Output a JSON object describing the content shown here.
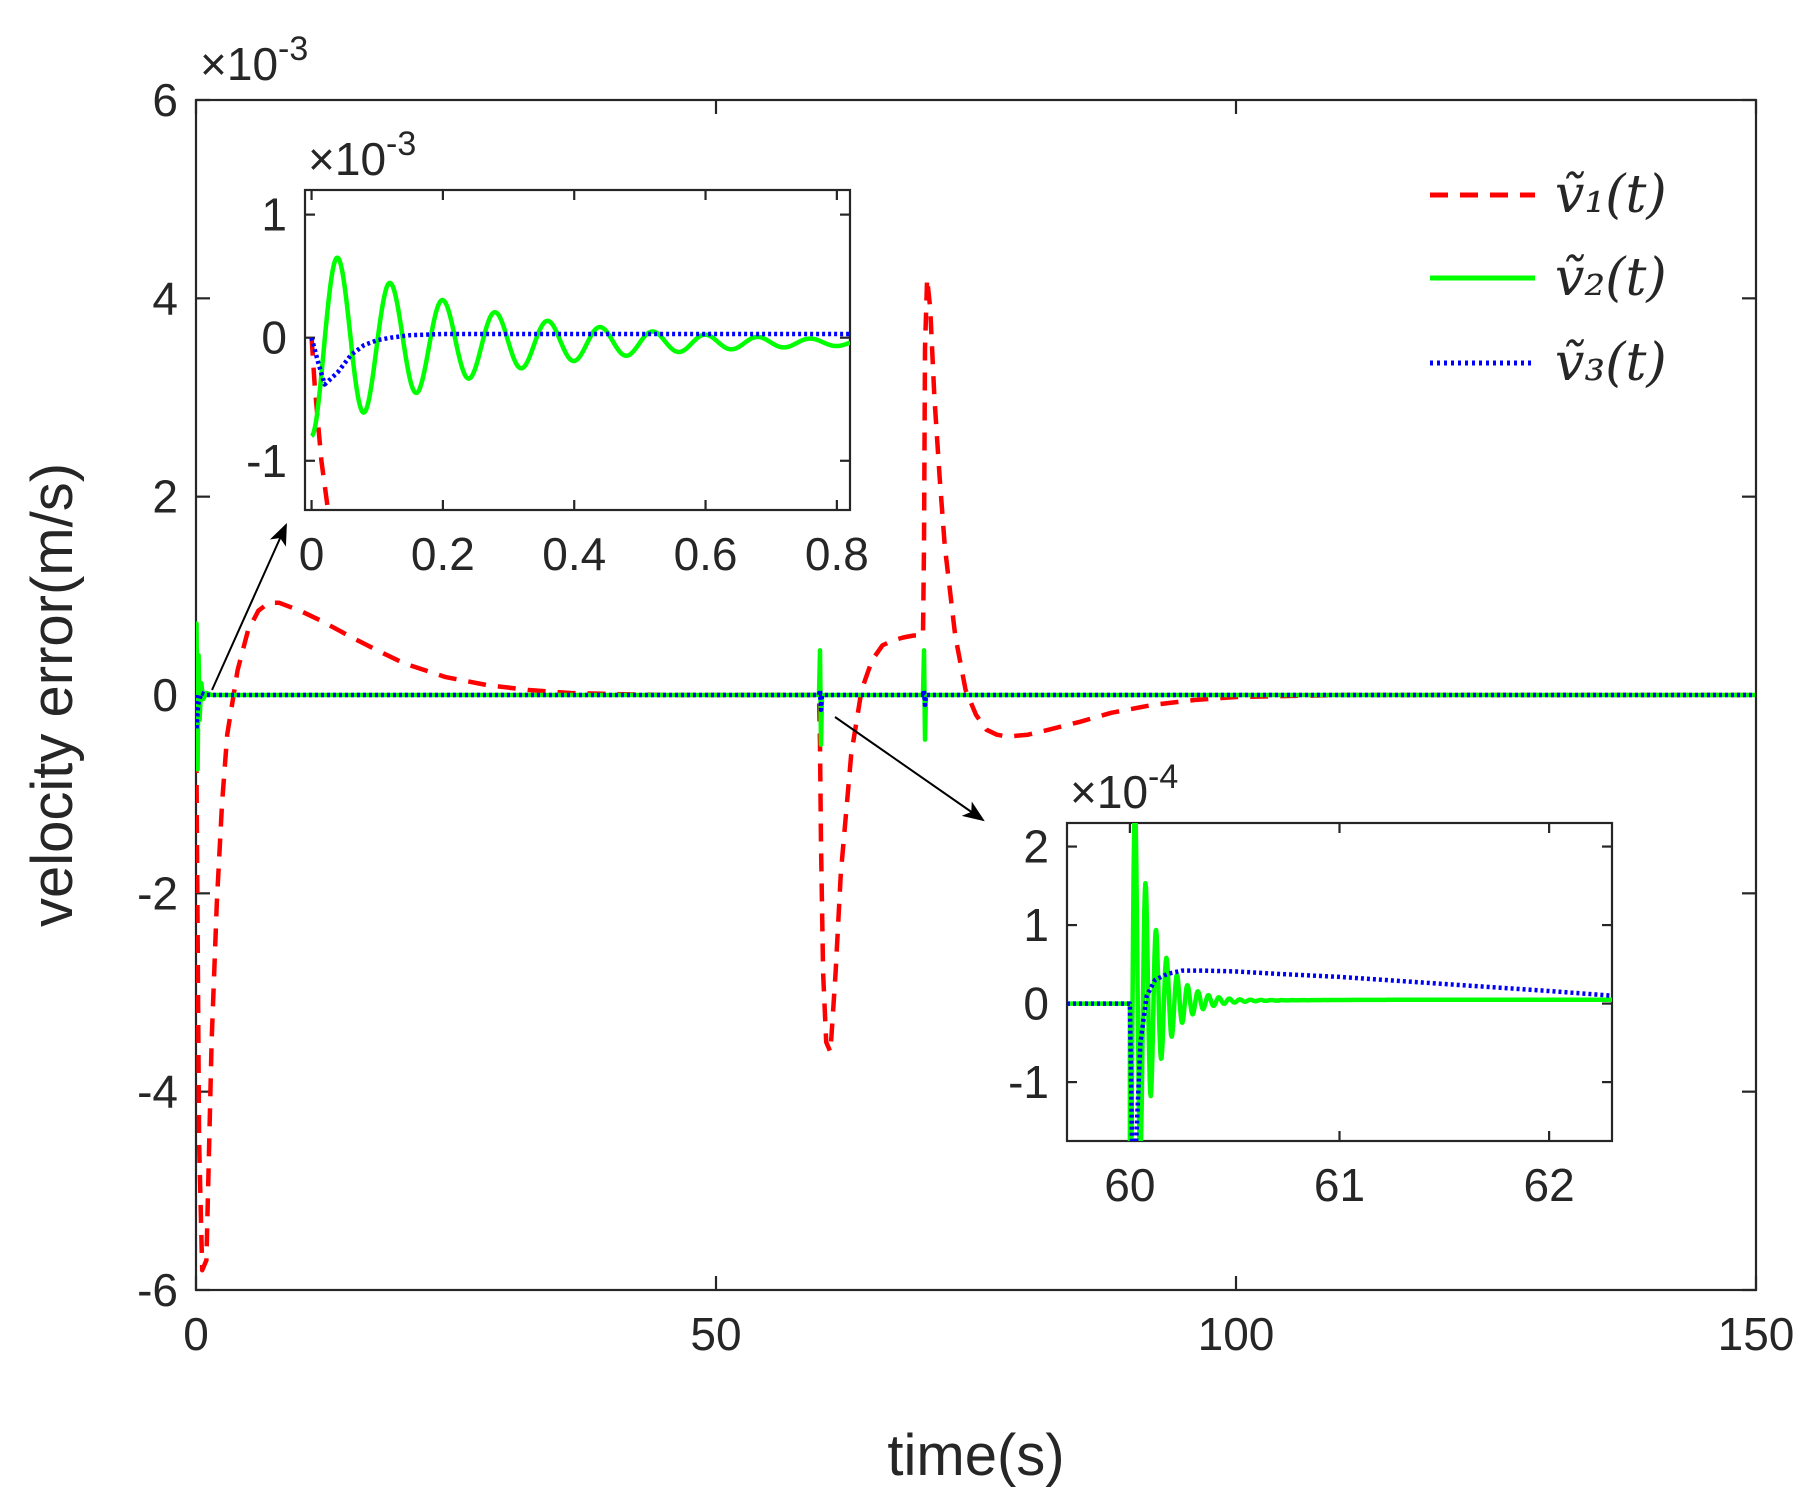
{
  "chart_data": [
    {
      "id": "main",
      "type": "line",
      "xlabel": "time(s)",
      "ylabel": "velocity error(m/s)",
      "xlim": [
        0,
        150
      ],
      "ylim": [
        -6,
        6
      ],
      "y_multiplier": "×10",
      "y_exponent": "-3",
      "x_ticks": [
        0,
        50,
        100,
        150
      ],
      "x_tick_labels": [
        "0",
        "50",
        "100",
        "150"
      ],
      "y_ticks": [
        -6,
        -4,
        -2,
        0,
        2,
        4,
        6
      ],
      "y_tick_labels": [
        "-6",
        "-4",
        "-2",
        "0",
        "2",
        "4",
        "6"
      ],
      "legend": [
        {
          "label": "ṽ₁(t)",
          "color": "#ff0000",
          "style": "dashed"
        },
        {
          "label": "ṽ₂(t)",
          "color": "#00ff00",
          "style": "solid"
        },
        {
          "label": "ṽ₃(t)",
          "color": "#0000ff",
          "style": "dotted"
        }
      ],
      "legend_position": "top-right",
      "series": [
        {
          "name": "v1",
          "color": "#ff0000",
          "style": "dashed",
          "x": [
            0,
            0.1,
            0.3,
            0.6,
            1,
            1.5,
            2,
            2.5,
            3,
            4,
            5,
            6,
            7,
            8,
            10,
            12,
            15,
            18,
            20,
            24,
            28,
            32,
            36,
            40,
            45,
            50,
            55,
            59.9,
            60,
            60.1,
            60.3,
            60.6,
            61,
            61.5,
            62,
            63,
            64,
            65,
            66,
            67,
            68,
            69,
            69.9,
            70,
            70.1,
            70.3,
            70.6,
            71,
            71.5,
            72,
            73,
            74,
            75,
            76,
            77,
            78,
            80,
            82,
            85,
            88,
            92,
            96,
            100,
            105,
            110,
            120,
            130,
            140,
            150
          ],
          "y": [
            0,
            -1.5,
            -4.5,
            -5.8,
            -5.7,
            -3.5,
            -2.1,
            -1.1,
            -0.4,
            0.25,
            0.65,
            0.85,
            0.93,
            0.93,
            0.85,
            0.75,
            0.58,
            0.42,
            0.32,
            0.18,
            0.1,
            0.05,
            0.02,
            0.01,
            0,
            0,
            0,
            0,
            -0.5,
            -1.5,
            -2.8,
            -3.5,
            -3.6,
            -2.8,
            -1.8,
            -0.6,
            0.05,
            0.35,
            0.5,
            0.55,
            0.58,
            0.6,
            0.6,
            1.5,
            3.5,
            4.2,
            3.9,
            3.0,
            2.2,
            1.5,
            0.6,
            0.05,
            -0.2,
            -0.35,
            -0.4,
            -0.42,
            -0.4,
            -0.35,
            -0.27,
            -0.18,
            -0.1,
            -0.05,
            -0.02,
            -0.01,
            0,
            0,
            0,
            0,
            0
          ]
        },
        {
          "name": "v2",
          "color": "#00ff00",
          "style": "solid",
          "x": [
            0,
            0.05,
            0.15,
            0.25,
            0.35,
            0.5,
            0.7,
            1,
            1.5,
            150
          ],
          "y": [
            0,
            0.72,
            -0.75,
            0.4,
            -0.25,
            0.12,
            -0.04,
            0.02,
            0,
            0
          ],
          "spikes": [
            {
              "x": 60,
              "ymax": 0.45,
              "ymin": -0.5
            },
            {
              "x": 70,
              "ymax": 0.45,
              "ymin": -0.45
            }
          ]
        },
        {
          "name": "v3",
          "color": "#0000ff",
          "style": "dotted",
          "x": [
            0,
            0.05,
            0.2,
            0.5,
            1,
            150
          ],
          "y": [
            0,
            -0.35,
            -0.1,
            0.02,
            0,
            0
          ],
          "spikes": [
            {
              "x": 60,
              "ymax": 0.05,
              "ymin": -0.15
            },
            {
              "x": 70,
              "ymax": 0.05,
              "ymin": -0.1
            }
          ]
        }
      ],
      "annotations": [
        {
          "type": "arrow",
          "from": "spike at t≈0",
          "to": "inset 1"
        },
        {
          "type": "arrow",
          "from": "spike at t≈60",
          "to": "inset 2"
        }
      ]
    },
    {
      "id": "inset1",
      "type": "line",
      "xlim": [
        -0.01,
        0.82
      ],
      "ylim": [
        -1.4,
        1.2
      ],
      "y_multiplier": "×10",
      "y_exponent": "-3",
      "x_ticks": [
        0,
        0.2,
        0.4,
        0.6,
        0.8
      ],
      "x_tick_labels": [
        "0",
        "0.2",
        "0.4",
        "0.6",
        "0.8"
      ],
      "y_ticks": [
        -1,
        0,
        1
      ],
      "y_tick_labels": [
        "-1",
        "0",
        "1"
      ],
      "series": [
        {
          "name": "v1",
          "color": "#ff0000",
          "style": "dashed",
          "x": [
            0,
            0.005,
            0.01,
            0.015,
            0.02,
            0.025
          ],
          "y": [
            0,
            -0.4,
            -0.7,
            -1.0,
            -1.2,
            -1.4
          ]
        },
        {
          "name": "v2",
          "color": "#00ff00",
          "style": "solid",
          "damped": {
            "amp": 0.8,
            "decay": 4.2,
            "period": 0.08,
            "phase": -1.5708,
            "offset": -0.04,
            "settle": 0.035
          }
        },
        {
          "name": "v3",
          "color": "#0000ff",
          "style": "dotted",
          "x": [
            0,
            0.01,
            0.02,
            0.04,
            0.06,
            0.08,
            0.1,
            0.12,
            0.15,
            0.2,
            0.82
          ],
          "y": [
            0,
            -0.2,
            -0.38,
            -0.28,
            -0.14,
            -0.06,
            -0.02,
            0.0,
            0.02,
            0.03,
            0.03
          ]
        }
      ]
    },
    {
      "id": "inset2",
      "type": "line",
      "xlim": [
        59.7,
        62.3
      ],
      "ylim": [
        -1.75,
        2.3
      ],
      "y_multiplier": "×10",
      "y_exponent": "-4",
      "x_ticks": [
        60,
        61,
        62
      ],
      "x_tick_labels": [
        "60",
        "61",
        "62"
      ],
      "y_ticks": [
        -1,
        0,
        1,
        2
      ],
      "y_tick_labels": [
        "-1",
        "0",
        "1",
        "2"
      ],
      "series": [
        {
          "name": "v2",
          "color": "#00ff00",
          "style": "solid",
          "t0": 60.0,
          "damped": {
            "amp": 3.2,
            "decay": 6.2,
            "period": 0.05,
            "phase": -1.5708,
            "offset": 0.05,
            "settle": 0.4
          }
        },
        {
          "name": "v3",
          "color": "#0000ff",
          "style": "dotted",
          "x": [
            59.7,
            60.0,
            60.01,
            60.03,
            60.05,
            60.08,
            60.12,
            60.18,
            60.25,
            60.35,
            60.5,
            60.7,
            61.0,
            61.5,
            62.0,
            62.3
          ],
          "y": [
            0,
            0,
            -1.75,
            -1.75,
            -0.5,
            0.1,
            0.3,
            0.38,
            0.42,
            0.42,
            0.41,
            0.38,
            0.34,
            0.25,
            0.16,
            0.1
          ]
        }
      ]
    }
  ]
}
